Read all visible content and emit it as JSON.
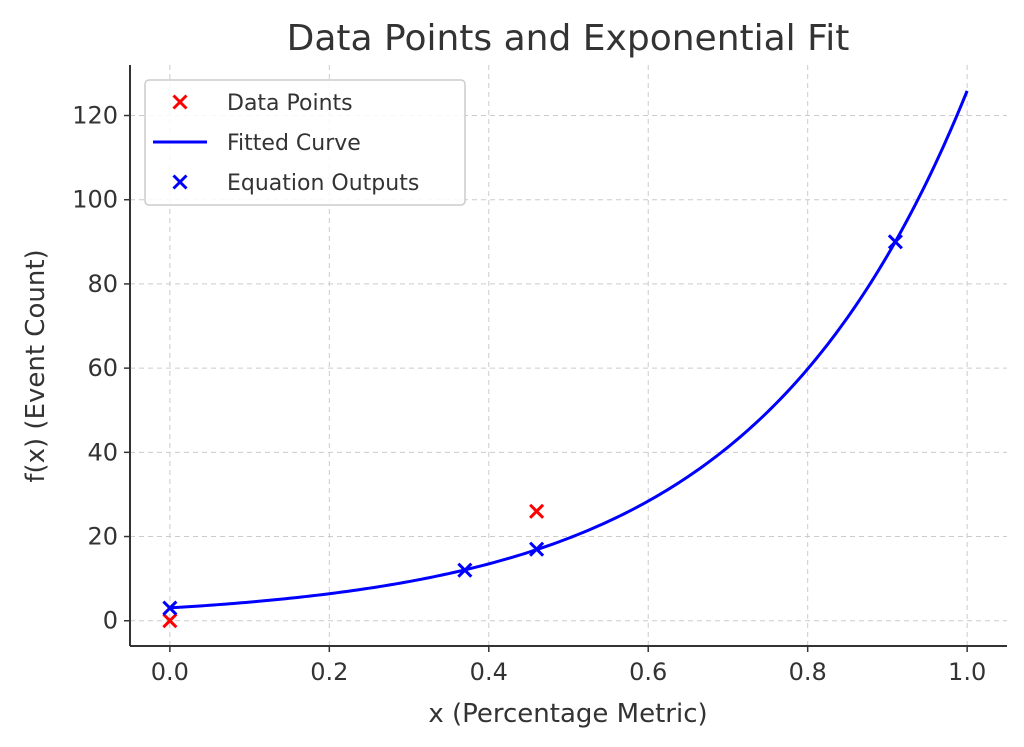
{
  "chart_data": {
    "type": "scatter",
    "title": "Data Points and Exponential Fit",
    "xlabel": "x (Percentage Metric)",
    "ylabel": "f(x) (Event Count)",
    "xlim": [
      -0.05,
      1.05
    ],
    "ylim": [
      -6,
      132
    ],
    "grid": true,
    "legend_position": "top-left",
    "x_ticks": [
      "0.0",
      "0.2",
      "0.4",
      "0.6",
      "0.8",
      "1.0"
    ],
    "y_ticks": [
      "0",
      "20",
      "40",
      "60",
      "80",
      "100",
      "120"
    ],
    "series": [
      {
        "name": "Data Points",
        "kind": "scatter",
        "marker": "x",
        "color": "#ff0000",
        "points": [
          {
            "x": 0.0,
            "y": 0
          },
          {
            "x": 0.46,
            "y": 26
          }
        ]
      },
      {
        "name": "Fitted Curve",
        "kind": "line",
        "color": "#0000ff",
        "fit": {
          "model": "exponential",
          "a": 3.05,
          "b": 3.72
        },
        "x_range": [
          0.0,
          1.0
        ]
      },
      {
        "name": "Equation Outputs",
        "kind": "scatter",
        "marker": "x",
        "color": "#0000ff",
        "points": [
          {
            "x": 0.0,
            "y": 3
          },
          {
            "x": 0.37,
            "y": 12
          },
          {
            "x": 0.46,
            "y": 17
          },
          {
            "x": 0.91,
            "y": 90
          }
        ]
      }
    ]
  }
}
